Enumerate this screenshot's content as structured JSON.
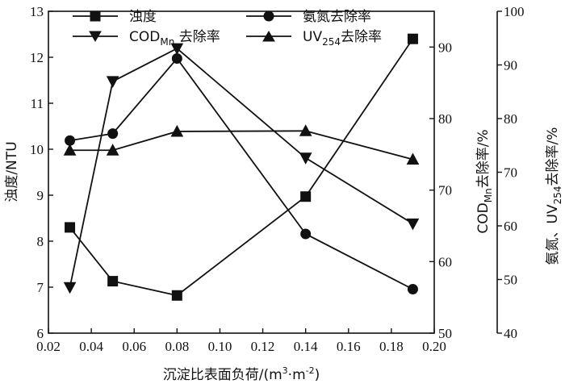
{
  "chart_data": {
    "type": "line",
    "xlabel": "沉淀比表面负荷/(m³·m⁻²)",
    "ylabel_left": "浊度/NTU",
    "ylabel_mid": "COD_Mn去除率/%",
    "ylabel_right": "氨氮、UV_254去除率/%",
    "xlim": [
      0.02,
      0.2
    ],
    "x_ticks": [
      "0.02",
      "0.04",
      "0.06",
      "0.08",
      "0.10",
      "0.12",
      "0.14",
      "0.16",
      "0.18",
      "0.20"
    ],
    "ylim_left": [
      6,
      13
    ],
    "y_ticks_left": [
      "6",
      "7",
      "8",
      "9",
      "10",
      "11",
      "12",
      "13"
    ],
    "ylim_mid": [
      50,
      95
    ],
    "y_ticks_mid": [
      "50",
      "60",
      "70",
      "80",
      "90"
    ],
    "ylim_right": [
      40,
      100
    ],
    "y_ticks_right": [
      "40",
      "50",
      "60",
      "70",
      "80",
      "90",
      "100"
    ],
    "grid": false,
    "legend_position": "top",
    "x": [
      0.03,
      0.05,
      0.08,
      0.14,
      0.19
    ],
    "series": [
      {
        "name": "浊度",
        "marker": "square",
        "axis": "left",
        "values": [
          8.3,
          7.13,
          6.82,
          8.97,
          12.4
        ]
      },
      {
        "name": "氨氮去除率",
        "marker": "circle",
        "axis": "right",
        "values": [
          75.9,
          77.2,
          91.2,
          58.5,
          48.2
        ]
      },
      {
        "name": "COD_Mn去除率",
        "marker": "triangle-down",
        "axis": "mid",
        "values": [
          56.4,
          85.2,
          89.8,
          74.5,
          65.3
        ]
      },
      {
        "name": "UV_254去除率",
        "marker": "triangle-up",
        "axis": "right",
        "values": [
          74.1,
          74.1,
          77.6,
          77.7,
          72.4
        ]
      }
    ]
  }
}
